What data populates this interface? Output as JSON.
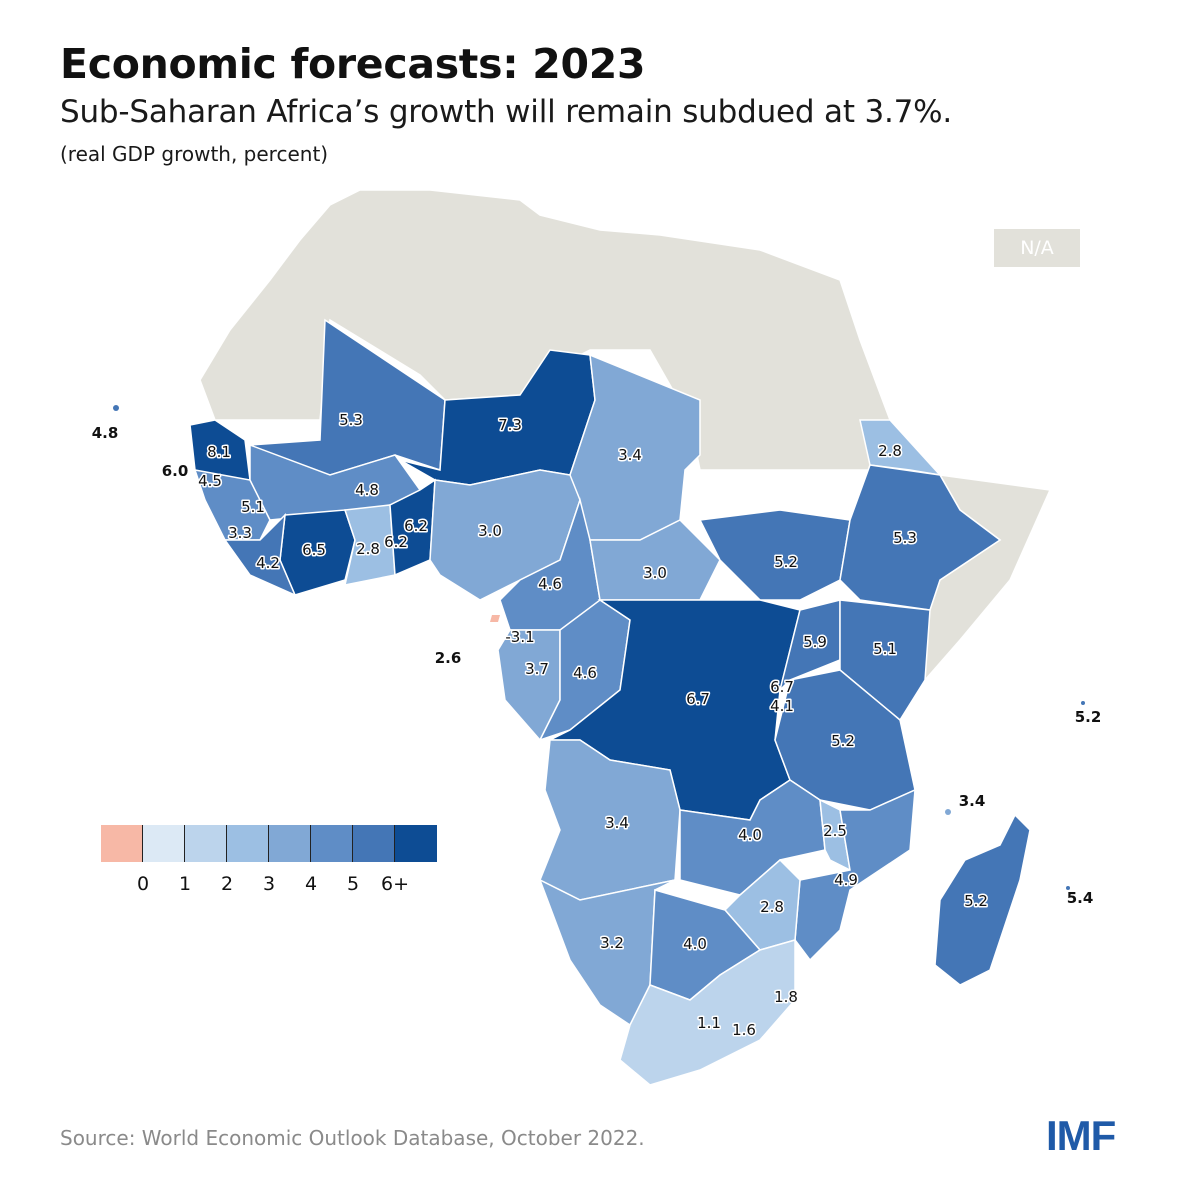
{
  "header": {
    "title": "Economic forecasts: 2023",
    "subtitle": "Sub-Saharan Africa’s growth will remain subdued at 3.7%.",
    "units": "(real GDP growth, percent)"
  },
  "legend": {
    "na_label": "N/A",
    "na_color": "#e2e1da",
    "colors": [
      "#f7b8a6",
      "#dce9f5",
      "#bcd4ec",
      "#9cbfe3",
      "#81a8d5",
      "#5f8dc6",
      "#4476b6",
      "#0d4c94"
    ],
    "tick_labels": [
      "0",
      "1",
      "2",
      "3",
      "4",
      "5",
      "6+"
    ]
  },
  "map": {
    "na_regions": [
      "Morocco",
      "Algeria",
      "Tunisia",
      "Libya",
      "Egypt",
      "Western Sahara",
      "Mauritania",
      "Sudan",
      "Somalia",
      "Djibouti"
    ],
    "values": [
      {
        "label": "4.8",
        "value": 4.8,
        "outside": true
      },
      {
        "label": "8.1",
        "value": 8.1
      },
      {
        "label": "6.0",
        "value": 6.0,
        "outside": true
      },
      {
        "label": "4.5",
        "value": 4.5
      },
      {
        "label": "5.1",
        "value": 5.1
      },
      {
        "label": "3.3",
        "value": 3.3
      },
      {
        "label": "4.2",
        "value": 4.2
      },
      {
        "label": "6.5",
        "value": 6.5
      },
      {
        "label": "2.8",
        "value": 2.8
      },
      {
        "label": "6.2",
        "value": 6.2
      },
      {
        "label": "6.2",
        "value": 6.2
      },
      {
        "label": "5.3",
        "value": 5.3
      },
      {
        "label": "4.8",
        "value": 4.8
      },
      {
        "label": "7.3",
        "value": 7.3
      },
      {
        "label": "3.0",
        "value": 3.0
      },
      {
        "label": "3.4",
        "value": 3.4
      },
      {
        "label": "4.6",
        "value": 4.6
      },
      {
        "label": "3.0",
        "value": 3.0
      },
      {
        "label": "2.8",
        "value": 2.8
      },
      {
        "label": "5.2",
        "value": 5.2
      },
      {
        "label": "5.3",
        "value": 5.3
      },
      {
        "label": "-3.1",
        "value": -3.1
      },
      {
        "label": "2.6",
        "value": 2.6,
        "outside": true
      },
      {
        "label": "3.7",
        "value": 3.7
      },
      {
        "label": "4.6",
        "value": 4.6
      },
      {
        "label": "6.7",
        "value": 6.7
      },
      {
        "label": "5.9",
        "value": 5.9
      },
      {
        "label": "6.7",
        "value": 6.7
      },
      {
        "label": "4.1",
        "value": 4.1
      },
      {
        "label": "5.1",
        "value": 5.1
      },
      {
        "label": "5.2",
        "value": 5.2
      },
      {
        "label": "5.2",
        "value": 5.2,
        "outside": true
      },
      {
        "label": "3.4",
        "value": 3.4
      },
      {
        "label": "4.0",
        "value": 4.0
      },
      {
        "label": "2.5",
        "value": 2.5
      },
      {
        "label": "4.9",
        "value": 4.9
      },
      {
        "label": "3.4",
        "value": 3.4,
        "outside": true
      },
      {
        "label": "5.2",
        "value": 5.2
      },
      {
        "label": "5.4",
        "value": 5.4,
        "outside": true
      },
      {
        "label": "2.8",
        "value": 2.8
      },
      {
        "label": "3.2",
        "value": 3.2
      },
      {
        "label": "4.0",
        "value": 4.0
      },
      {
        "label": "1.8",
        "value": 1.8
      },
      {
        "label": "1.1",
        "value": 1.1
      },
      {
        "label": "1.6",
        "value": 1.6
      }
    ]
  },
  "footer": {
    "source": "Source: World Economic Outlook Database, October 2022.",
    "logo": "IMF"
  }
}
